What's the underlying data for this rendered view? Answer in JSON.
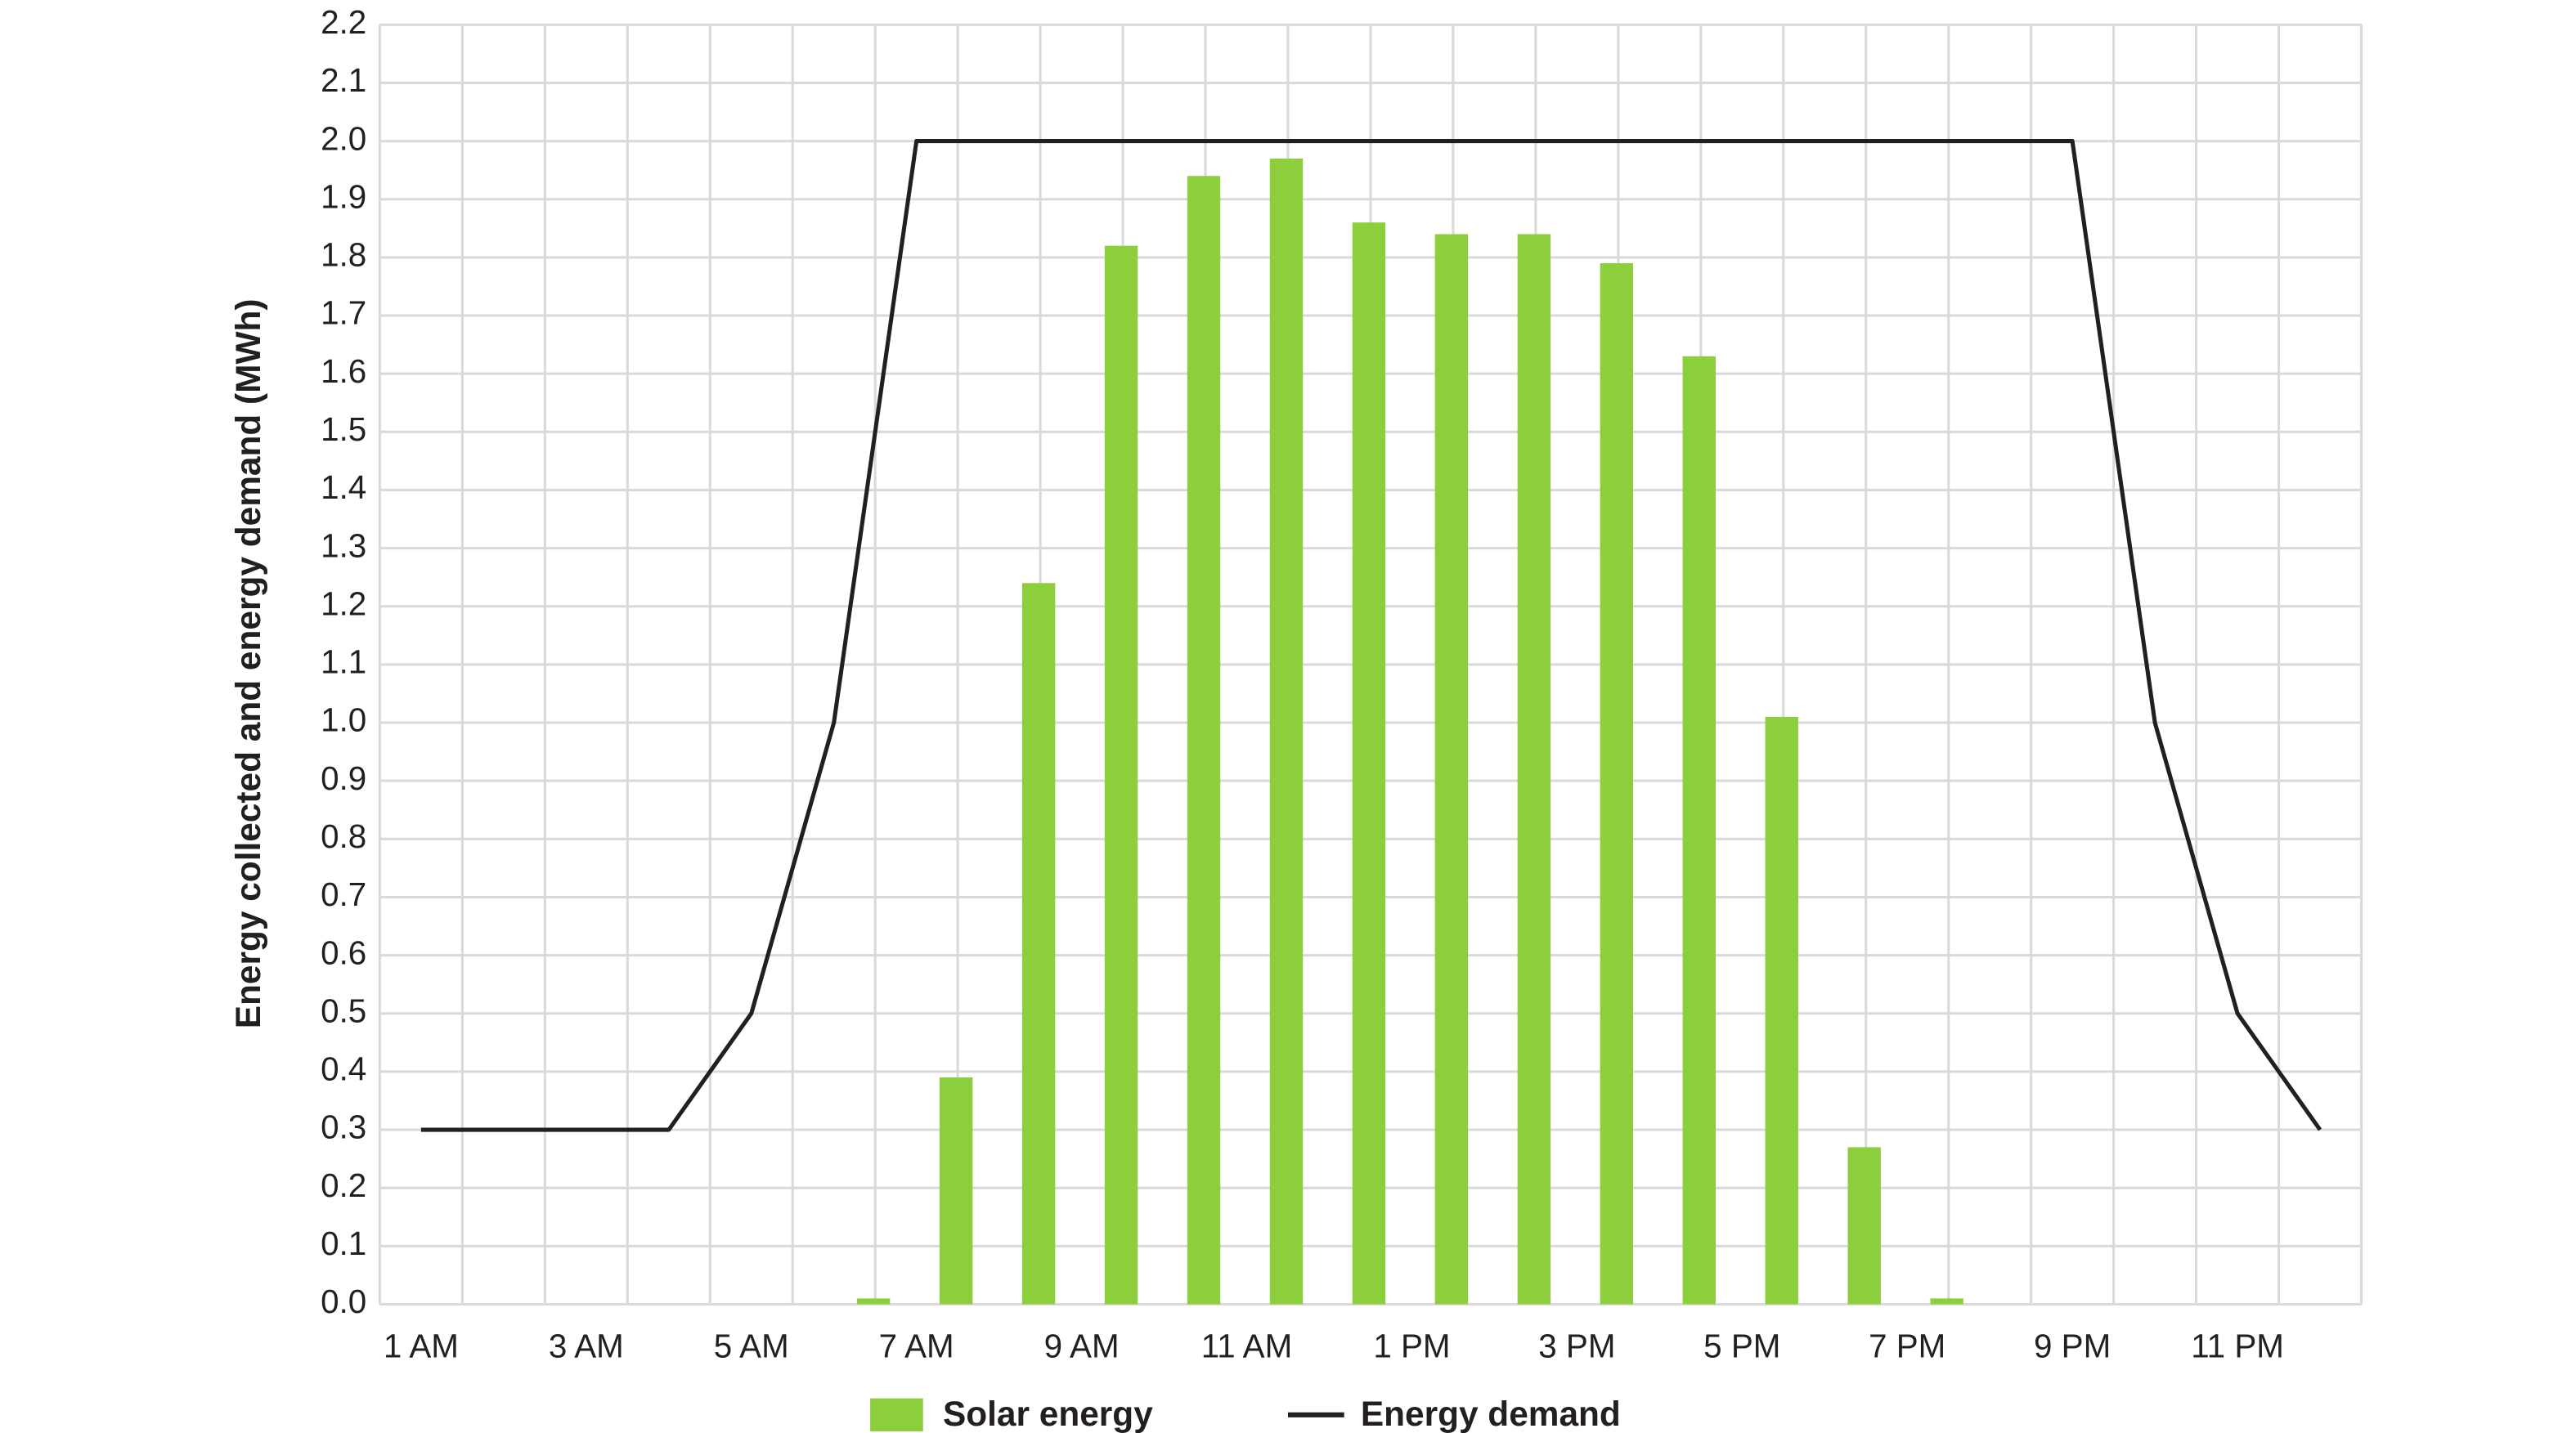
{
  "chart_data": {
    "type": "bar_line",
    "y_label": "Energy collected and energy demand (MWh)",
    "categories": [
      "1 AM",
      null,
      "3 AM",
      null,
      "5 AM",
      null,
      "7 AM",
      null,
      "9 AM",
      null,
      "11 AM",
      null,
      "1 PM",
      null,
      "3 PM",
      null,
      "5 PM",
      null,
      "7 PM",
      null,
      "9 PM",
      null,
      "11 PM",
      null
    ],
    "series": [
      {
        "name": "Solar energy",
        "color": "#8dce3d",
        "kind": "bar",
        "values": [
          0,
          0,
          0,
          0,
          0,
          0.01,
          0.39,
          1.24,
          1.82,
          1.94,
          1.97,
          1.86,
          1.84,
          1.84,
          1.79,
          1.63,
          1.01,
          0.27,
          0.01,
          0,
          0,
          0,
          0,
          0
        ]
      },
      {
        "name": "Energy demand",
        "color": "#231f20",
        "kind": "line",
        "values": [
          0.3,
          0.3,
          0.3,
          0.3,
          0.5,
          1.0,
          2.0,
          2.0,
          2.0,
          2.0,
          2.0,
          2.0,
          2.0,
          2.0,
          2.0,
          2.0,
          2.0,
          2.0,
          2.0,
          2.0,
          2.0,
          1.0,
          0.5,
          0.3
        ]
      }
    ],
    "ylim": [
      0,
      2.2
    ],
    "yticks": [
      {
        "value": 0,
        "label": "0.0"
      },
      0.1,
      0.2,
      0.3,
      0.4,
      0.5,
      0.6,
      0.7,
      0.8,
      0.9,
      {
        "value": 1,
        "label": "1.0"
      },
      1.1,
      1.2,
      1.3,
      1.4,
      1.5,
      1.6,
      1.7,
      1.8,
      1.9,
      {
        "value": 2,
        "label": "2.0"
      },
      2.1,
      2.2
    ],
    "grid": true,
    "legend": "bottom"
  }
}
